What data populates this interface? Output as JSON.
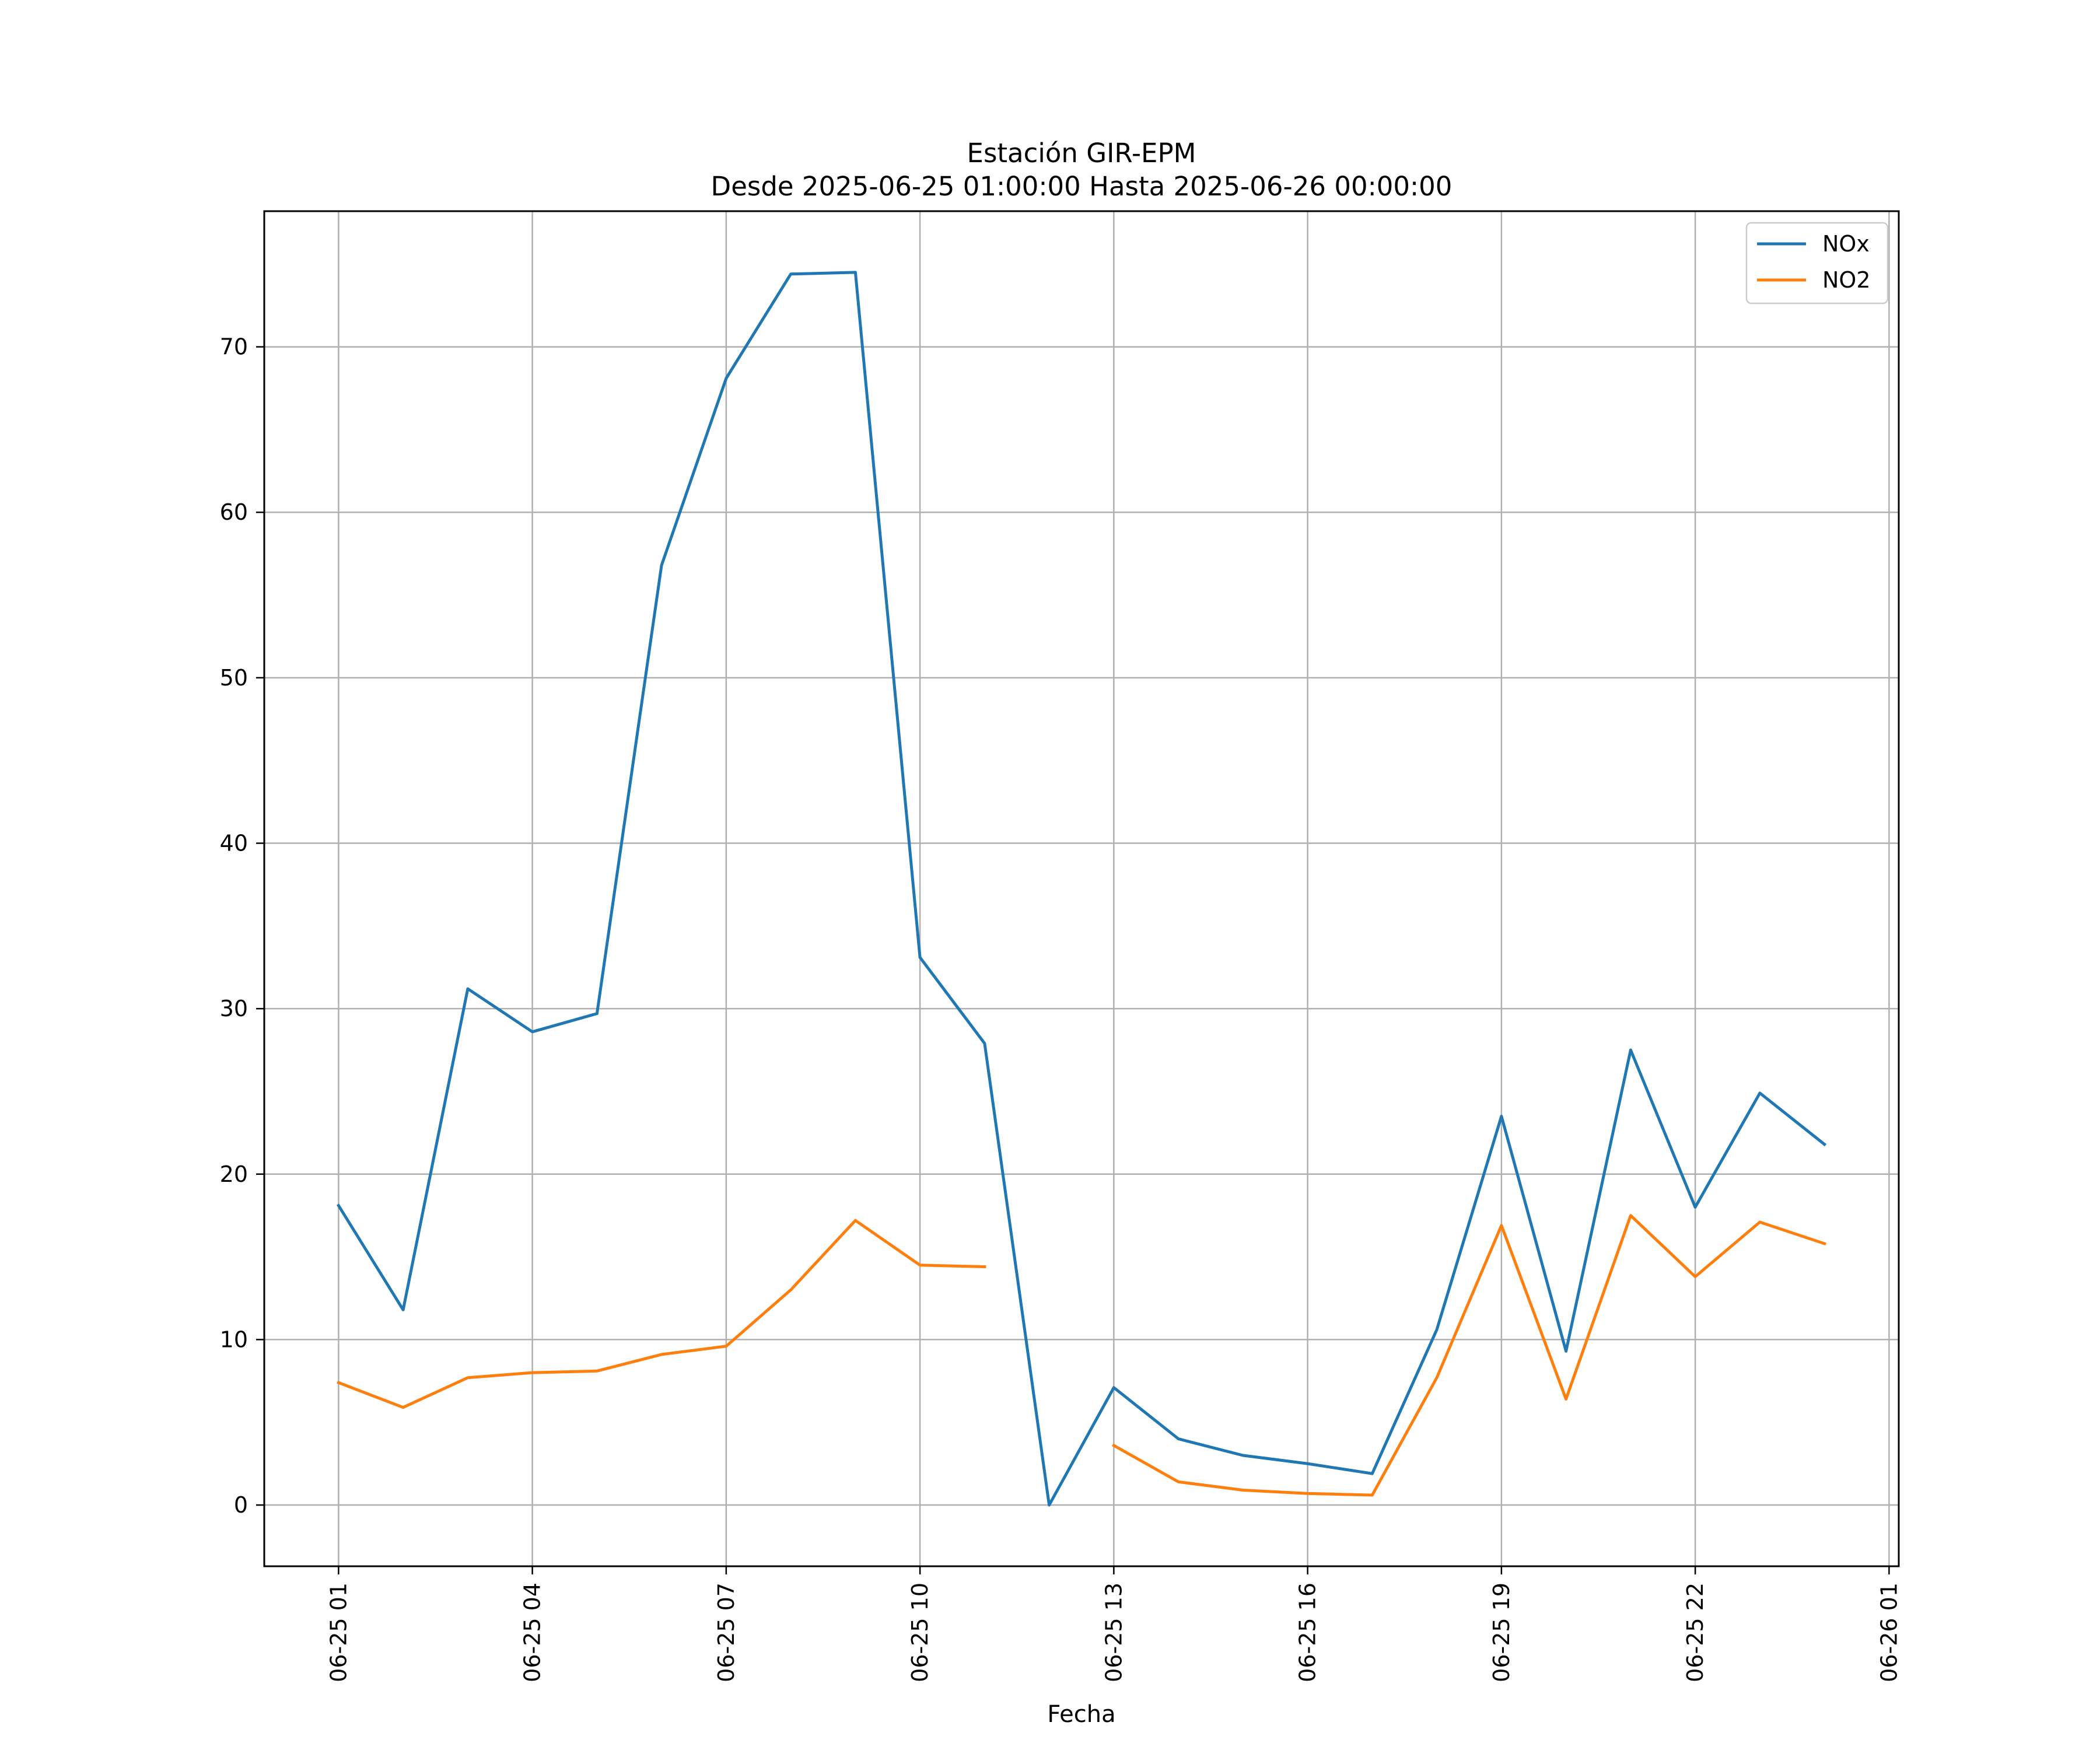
{
  "chart_data": {
    "type": "line",
    "title_lines": [
      "Estación GIR-EPM",
      "Desde 2025-06-25 01:00:00 Hasta 2025-06-26 00:00:00"
    ],
    "xlabel": "Fecha",
    "ylabel": "",
    "x": [
      "2025-06-25 01:00",
      "2025-06-25 02:00",
      "2025-06-25 03:00",
      "2025-06-25 04:00",
      "2025-06-25 05:00",
      "2025-06-25 06:00",
      "2025-06-25 07:00",
      "2025-06-25 08:00",
      "2025-06-25 09:00",
      "2025-06-25 10:00",
      "2025-06-25 11:00",
      "2025-06-25 12:00",
      "2025-06-25 13:00",
      "2025-06-25 14:00",
      "2025-06-25 15:00",
      "2025-06-25 16:00",
      "2025-06-25 17:00",
      "2025-06-25 18:00",
      "2025-06-25 19:00",
      "2025-06-25 20:00",
      "2025-06-25 21:00",
      "2025-06-25 22:00",
      "2025-06-25 23:00",
      "2025-06-26 00:00"
    ],
    "series": [
      {
        "name": "NOx",
        "color": "#1f77b4",
        "values": [
          18.1,
          11.8,
          31.2,
          28.6,
          29.7,
          56.8,
          68.1,
          74.4,
          74.5,
          33.1,
          27.9,
          0.0,
          7.1,
          4.0,
          3.0,
          2.5,
          1.9,
          10.6,
          23.5,
          9.3,
          27.5,
          18.0,
          24.9,
          21.8
        ]
      },
      {
        "name": "NO2",
        "color": "#ff7f0e",
        "values": [
          7.4,
          5.9,
          7.7,
          8.0,
          8.1,
          9.1,
          9.6,
          13.0,
          17.2,
          14.5,
          14.4,
          null,
          3.6,
          1.4,
          0.9,
          0.7,
          0.6,
          7.7,
          16.9,
          6.4,
          17.5,
          13.8,
          17.1,
          15.8
        ]
      }
    ],
    "x_ticks": [
      "06-25 01",
      "06-25 04",
      "06-25 07",
      "06-25 10",
      "06-25 13",
      "06-25 16",
      "06-25 19",
      "06-25 22",
      "06-26 01"
    ],
    "x_range": [
      "2025-06-24 23:51",
      "2025-06-26 01:09"
    ],
    "y_ticks": [
      0,
      10,
      20,
      30,
      40,
      50,
      60,
      70
    ],
    "ylim": [
      -3.7,
      78.2
    ],
    "grid": true,
    "legend_position": "top-right"
  }
}
